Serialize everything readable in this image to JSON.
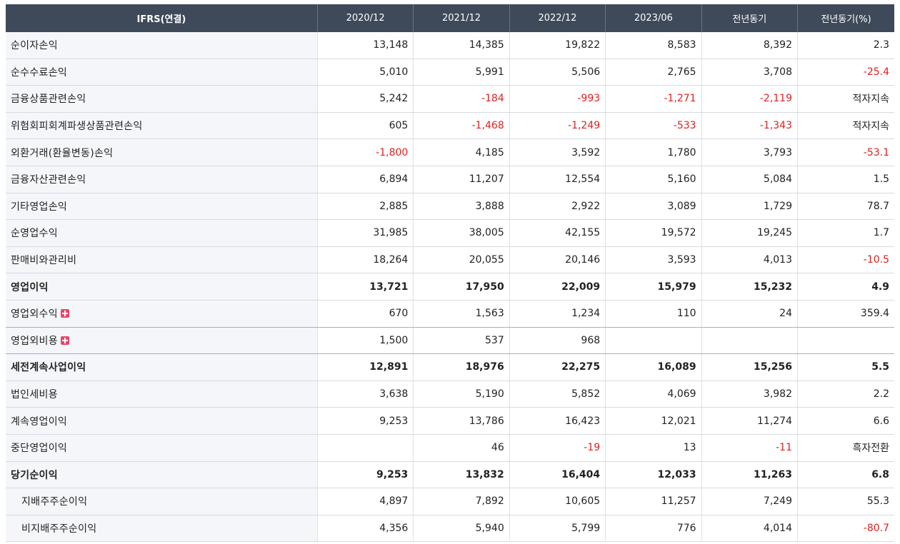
{
  "header": {
    "label": "IFRS(연결)",
    "columns": [
      "2020/12",
      "2021/12",
      "2022/12",
      "2023/06",
      "전년동기",
      "전년동기(%)"
    ]
  },
  "rows": [
    {
      "label": "순이자손익",
      "values": [
        "13,148",
        "14,385",
        "19,822",
        "8,583",
        "8,392",
        "2.3"
      ]
    },
    {
      "label": "순수수료손익",
      "values": [
        "5,010",
        "5,991",
        "5,506",
        "2,765",
        "3,708",
        "-25.4"
      ]
    },
    {
      "label": "금융상품관련손익",
      "values": [
        "5,242",
        "-184",
        "-993",
        "-1,271",
        "-2,119",
        "적자지속"
      ]
    },
    {
      "label": "위험회피회계파생상품관련손익",
      "values": [
        "605",
        "-1,468",
        "-1,249",
        "-533",
        "-1,343",
        "적자지속"
      ]
    },
    {
      "label": "외환거래(환율변동)손익",
      "values": [
        "-1,800",
        "4,185",
        "3,592",
        "1,780",
        "3,793",
        "-53.1"
      ]
    },
    {
      "label": "금융자산관련손익",
      "values": [
        "6,894",
        "11,207",
        "12,554",
        "5,160",
        "5,084",
        "1.5"
      ]
    },
    {
      "label": "기타영업손익",
      "values": [
        "2,885",
        "3,888",
        "2,922",
        "3,089",
        "1,729",
        "78.7"
      ]
    },
    {
      "label": "순영업수익",
      "values": [
        "31,985",
        "38,005",
        "42,155",
        "19,572",
        "19,245",
        "1.7"
      ]
    },
    {
      "label": "판매비와관리비",
      "values": [
        "18,264",
        "20,055",
        "20,146",
        "3,593",
        "4,013",
        "-10.5"
      ]
    },
    {
      "label": "영업이익",
      "values": [
        "13,721",
        "17,950",
        "22,009",
        "15,979",
        "15,232",
        "4.9"
      ]
    },
    {
      "label": "영업외수익",
      "values": [
        "670",
        "1,563",
        "1,234",
        "110",
        "24",
        "359.4"
      ]
    },
    {
      "label": "영업외비용",
      "values": [
        "1,500",
        "537",
        "968",
        "",
        "",
        ""
      ]
    },
    {
      "label": "세전계속사업이익",
      "values": [
        "12,891",
        "18,976",
        "22,275",
        "16,089",
        "15,256",
        "5.5"
      ]
    },
    {
      "label": "법인세비용",
      "values": [
        "3,638",
        "5,190",
        "5,852",
        "4,069",
        "3,982",
        "2.2"
      ]
    },
    {
      "label": "계속영업이익",
      "values": [
        "9,253",
        "13,786",
        "16,423",
        "12,021",
        "11,274",
        "6.6"
      ]
    },
    {
      "label": "중단영업이익",
      "values": [
        "",
        "46",
        "-19",
        "13",
        "-11",
        "흑자전환"
      ]
    },
    {
      "label": "당기순이익",
      "values": [
        "9,253",
        "13,832",
        "16,404",
        "12,033",
        "11,263",
        "6.8"
      ]
    },
    {
      "label": "지배주주순이익",
      "values": [
        "4,897",
        "7,892",
        "10,605",
        "11,257",
        "7,249",
        "55.3"
      ]
    },
    {
      "label": "비지배주주순이익",
      "values": [
        "4,356",
        "5,940",
        "5,799",
        "776",
        "4,014",
        "-80.7"
      ]
    }
  ],
  "colors": {
    "header_bg": "#3e4a5a",
    "label_bg": "#f4f6f9",
    "negative": "#e02020",
    "expand_icon": "#e8476a"
  },
  "icons": {
    "expand": "plus-icon"
  }
}
